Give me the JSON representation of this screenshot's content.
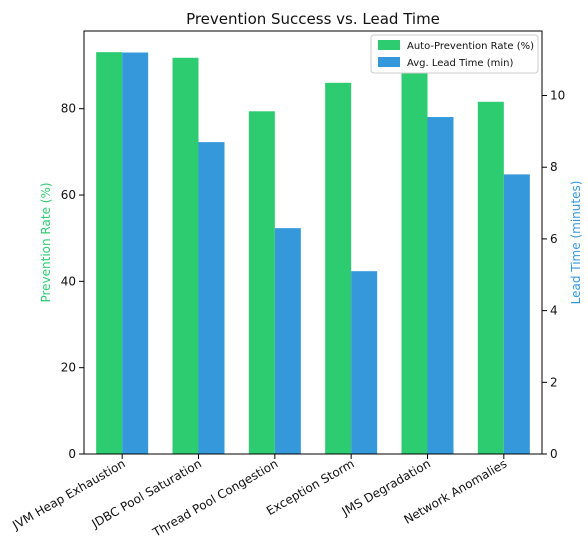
{
  "chart_data": {
    "type": "bar",
    "title": "Prevention Success vs. Lead Time",
    "categories": [
      "JVM Heap Exhaustion",
      "JDBC Pool Saturation",
      "Thread Pool Congestion",
      "Exception Storm",
      "JMS Degradation",
      "Network Anomalies"
    ],
    "series": [
      {
        "name": "Auto-Prevention Rate (%)",
        "axis": "left",
        "color": "#2ecc71",
        "values": [
          93.1,
          91.8,
          79.4,
          86.0,
          90.5,
          81.6
        ]
      },
      {
        "name": "Avg. Lead Time (min)",
        "axis": "right",
        "color": "#3498db",
        "values": [
          11.2,
          8.7,
          6.3,
          5.1,
          9.4,
          7.8
        ]
      }
    ],
    "ylabel_left": "Prevention Rate (%)",
    "ylabel_right": "Lead Time (minutes)",
    "ylim_left": [
      0,
      98
    ],
    "ylim_right": [
      0,
      11.8
    ],
    "yticks_left": [
      0,
      20,
      40,
      60,
      80
    ],
    "yticks_right": [
      0,
      2,
      4,
      6,
      8,
      10
    ],
    "legend_position": "top-right",
    "grid": false
  }
}
